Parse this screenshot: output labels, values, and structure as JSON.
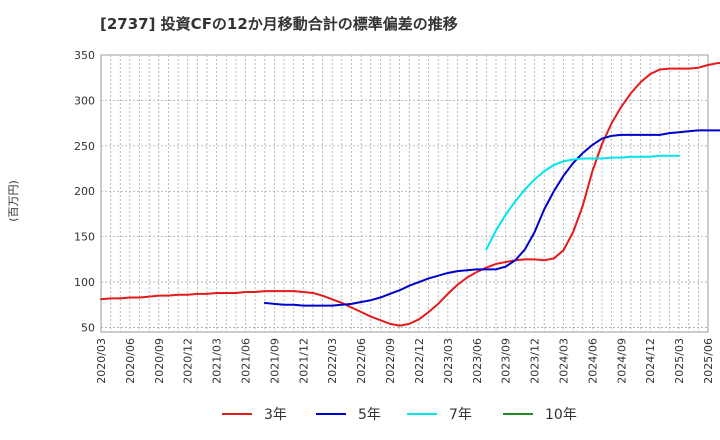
{
  "chart_data": {
    "type": "line",
    "title": "[2737]  投資CFの12か月移動合計の標準偏差の推移",
    "ylabel": "(百万円)",
    "xlabel": "",
    "ylim": [
      45,
      350
    ],
    "yticks": [
      50,
      100,
      150,
      200,
      250,
      300,
      350
    ],
    "xticks": [
      "2020/03",
      "2020/06",
      "2020/09",
      "2020/12",
      "2021/03",
      "2021/06",
      "2021/09",
      "2021/12",
      "2022/03",
      "2022/06",
      "2022/09",
      "2022/12",
      "2023/03",
      "2023/06",
      "2023/09",
      "2023/12",
      "2024/03",
      "2024/06",
      "2024/09",
      "2024/12",
      "2025/03",
      "2025/06"
    ],
    "grid": true,
    "legend_position": "bottom",
    "series": [
      {
        "name": "3年",
        "color": "#e41a1c",
        "start": "2020/03",
        "values": [
          81,
          82,
          82,
          83,
          83,
          84,
          85,
          85,
          86,
          86,
          87,
          87,
          88,
          88,
          88,
          89,
          89,
          90,
          90,
          90,
          90,
          89,
          88,
          85,
          81,
          77,
          72,
          67,
          62,
          58,
          54,
          52,
          54,
          59,
          67,
          76,
          87,
          97,
          105,
          111,
          116,
          120,
          122,
          124,
          125,
          125,
          124,
          126,
          135,
          155,
          184,
          222,
          252,
          275,
          293,
          308,
          320,
          329,
          334,
          335,
          335,
          335,
          336,
          339,
          341,
          342,
          343,
          343,
          342,
          340
        ]
      },
      {
        "name": "5年",
        "color": "#0000cc",
        "start": "2021/08",
        "values": [
          77,
          76,
          75,
          75,
          74,
          74,
          74,
          74,
          75,
          76,
          78,
          80,
          83,
          87,
          91,
          96,
          100,
          104,
          107,
          110,
          112,
          113,
          114,
          114,
          114,
          117,
          124,
          136,
          155,
          180,
          200,
          217,
          231,
          242,
          251,
          258,
          261,
          262,
          262,
          262,
          262,
          262,
          264,
          265,
          266,
          267,
          267,
          267,
          267,
          267
        ]
      },
      {
        "name": "7年",
        "color": "#00e5ee",
        "start": "2023/07",
        "values": [
          136,
          157,
          174,
          189,
          202,
          213,
          222,
          229,
          233,
          235,
          236,
          236,
          236,
          237,
          237,
          238,
          238,
          238,
          239,
          239,
          239
        ]
      },
      {
        "name": "10年",
        "color": "#228b22",
        "start": "2025/03",
        "values": []
      }
    ]
  }
}
